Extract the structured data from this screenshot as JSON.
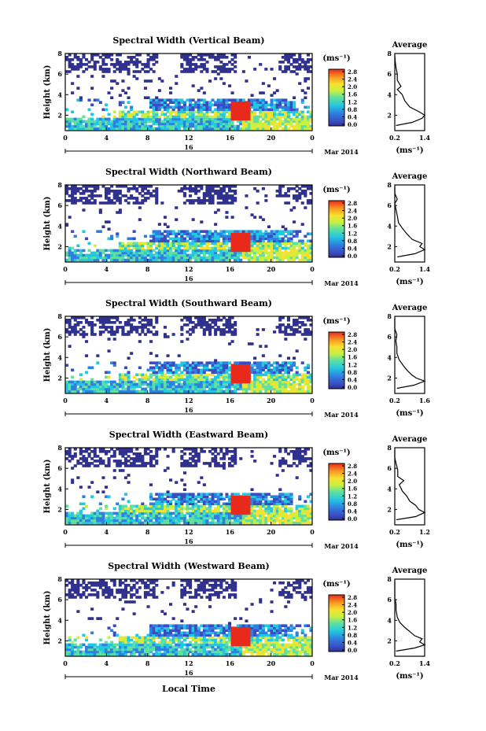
{
  "figure": {
    "xlabel_bottom": "Local Time",
    "date_label": "Mar 2014",
    "day_label": "16",
    "colorbar_unit": "(ms⁻¹)",
    "avg_title": "Average",
    "avg_xlabel": "(ms⁻¹)",
    "height_label": "Height (km)"
  },
  "chart_data": [
    {
      "type": "heatmap",
      "title": "Spectral Width (Vertical Beam)",
      "ylabel": "Height (km)",
      "x_ticks": [
        "0",
        "4",
        "8",
        "12",
        "16",
        "20",
        "0"
      ],
      "y_ticks": [
        "2",
        "4",
        "6",
        "8"
      ],
      "colorbar_ticks": [
        "0.0",
        "0.4",
        "0.8",
        "1.2",
        "1.6",
        "2.0",
        "2.4",
        "2.8"
      ],
      "avg_profile": {
        "title": "Average",
        "x_ticks": [
          "0.2",
          "1.4"
        ],
        "y_ticks": [
          "2",
          "4",
          "6",
          "8"
        ],
        "points": [
          [
            0.25,
            1.0
          ],
          [
            0.9,
            1.3
          ],
          [
            1.3,
            1.7
          ],
          [
            1.4,
            2.0
          ],
          [
            1.2,
            2.3
          ],
          [
            0.8,
            2.8
          ],
          [
            0.6,
            3.4
          ],
          [
            0.5,
            4.0
          ],
          [
            0.3,
            4.5
          ],
          [
            0.45,
            4.8
          ],
          [
            0.3,
            5.4
          ],
          [
            0.3,
            6.0
          ],
          [
            0.25,
            6.6
          ],
          [
            0.22,
            7.2
          ],
          [
            0.2,
            7.8
          ]
        ]
      }
    },
    {
      "type": "heatmap",
      "title": "Spectral Width (Northward Beam)",
      "ylabel": "Height (km)",
      "x_ticks": [
        "0",
        "4",
        "8",
        "12",
        "16",
        "20",
        "0"
      ],
      "y_ticks": [
        "2",
        "4",
        "6",
        "8"
      ],
      "colorbar_ticks": [
        "0.0",
        "0.4",
        "0.8",
        "1.2",
        "1.6",
        "2.0",
        "2.4",
        "2.8"
      ],
      "avg_profile": {
        "title": "Average",
        "x_ticks": [
          "0.2",
          "1.4"
        ],
        "y_ticks": [
          "2",
          "4",
          "6",
          "8"
        ],
        "points": [
          [
            0.3,
            1.0
          ],
          [
            1.0,
            1.3
          ],
          [
            1.4,
            1.7
          ],
          [
            1.2,
            2.0
          ],
          [
            1.3,
            2.3
          ],
          [
            0.9,
            2.7
          ],
          [
            0.7,
            3.2
          ],
          [
            0.5,
            3.8
          ],
          [
            0.35,
            4.3
          ],
          [
            0.3,
            5.0
          ],
          [
            0.25,
            5.6
          ],
          [
            0.2,
            6.2
          ],
          [
            0.3,
            6.6
          ],
          [
            0.2,
            7.2
          ],
          [
            0.2,
            7.8
          ]
        ]
      }
    },
    {
      "type": "heatmap",
      "title": "Spectral Width (Southward Beam)",
      "ylabel": "Height (km)",
      "x_ticks": [
        "0",
        "4",
        "8",
        "12",
        "16",
        "20",
        "0"
      ],
      "y_ticks": [
        "2",
        "4",
        "6",
        "8"
      ],
      "colorbar_ticks": [
        "0.0",
        "0.4",
        "0.8",
        "1.2",
        "1.6",
        "2.0",
        "2.4",
        "2.8"
      ],
      "avg_profile": {
        "title": "Average",
        "x_ticks": [
          "0.2",
          "1.6"
        ],
        "y_ticks": [
          "2",
          "4",
          "6",
          "8"
        ],
        "points": [
          [
            0.3,
            1.0
          ],
          [
            1.1,
            1.3
          ],
          [
            1.6,
            1.7
          ],
          [
            1.2,
            2.0
          ],
          [
            1.0,
            2.3
          ],
          [
            0.8,
            2.7
          ],
          [
            0.6,
            3.2
          ],
          [
            0.4,
            3.8
          ],
          [
            0.3,
            4.4
          ],
          [
            0.3,
            5.0
          ],
          [
            0.25,
            5.6
          ],
          [
            0.3,
            6.2
          ],
          [
            0.2,
            6.8
          ],
          [
            0.2,
            7.4
          ],
          [
            0.2,
            7.8
          ]
        ]
      }
    },
    {
      "type": "heatmap",
      "title": "Spectral Width (Eastward Beam)",
      "ylabel": "Height (km)",
      "x_ticks": [
        "0",
        "4",
        "8",
        "12",
        "16",
        "20",
        "0"
      ],
      "y_ticks": [
        "2",
        "4",
        "6",
        "8"
      ],
      "colorbar_ticks": [
        "0.0",
        "0.4",
        "0.8",
        "1.2",
        "1.6",
        "2.0",
        "2.4",
        "2.8"
      ],
      "avg_profile": {
        "title": "Average",
        "x_ticks": [
          "0.2",
          "1.2"
        ],
        "y_ticks": [
          "2",
          "4",
          "6",
          "8"
        ],
        "points": [
          [
            0.25,
            1.0
          ],
          [
            0.9,
            1.3
          ],
          [
            1.2,
            1.7
          ],
          [
            1.0,
            2.0
          ],
          [
            0.9,
            2.4
          ],
          [
            0.7,
            2.8
          ],
          [
            0.6,
            3.3
          ],
          [
            0.45,
            3.8
          ],
          [
            0.35,
            4.4
          ],
          [
            0.5,
            4.8
          ],
          [
            0.3,
            5.2
          ],
          [
            0.3,
            5.8
          ],
          [
            0.25,
            6.4
          ],
          [
            0.2,
            7.0
          ],
          [
            0.2,
            7.8
          ]
        ]
      }
    },
    {
      "type": "heatmap",
      "title": "Spectral Width (Westward Beam)",
      "ylabel": "Height (km)",
      "x_ticks": [
        "0",
        "4",
        "8",
        "12",
        "16",
        "20",
        "0"
      ],
      "y_ticks": [
        "2",
        "4",
        "6",
        "8"
      ],
      "colorbar_ticks": [
        "0.0",
        "0.4",
        "0.8",
        "1.2",
        "1.6",
        "2.0",
        "2.4",
        "2.8"
      ],
      "avg_profile": {
        "title": "Average",
        "x_ticks": [
          "0.2",
          "1.4"
        ],
        "y_ticks": [
          "2",
          "4",
          "6",
          "8"
        ],
        "points": [
          [
            0.25,
            1.0
          ],
          [
            1.0,
            1.3
          ],
          [
            1.4,
            1.6
          ],
          [
            1.2,
            1.9
          ],
          [
            1.3,
            2.2
          ],
          [
            1.0,
            2.5
          ],
          [
            0.8,
            2.9
          ],
          [
            0.6,
            3.3
          ],
          [
            0.4,
            3.8
          ],
          [
            0.3,
            4.3
          ],
          [
            0.25,
            5.0
          ],
          [
            0.25,
            5.6
          ],
          [
            0.2,
            6.2
          ],
          [
            0.2,
            7.0
          ],
          [
            0.2,
            7.8
          ]
        ]
      }
    }
  ]
}
